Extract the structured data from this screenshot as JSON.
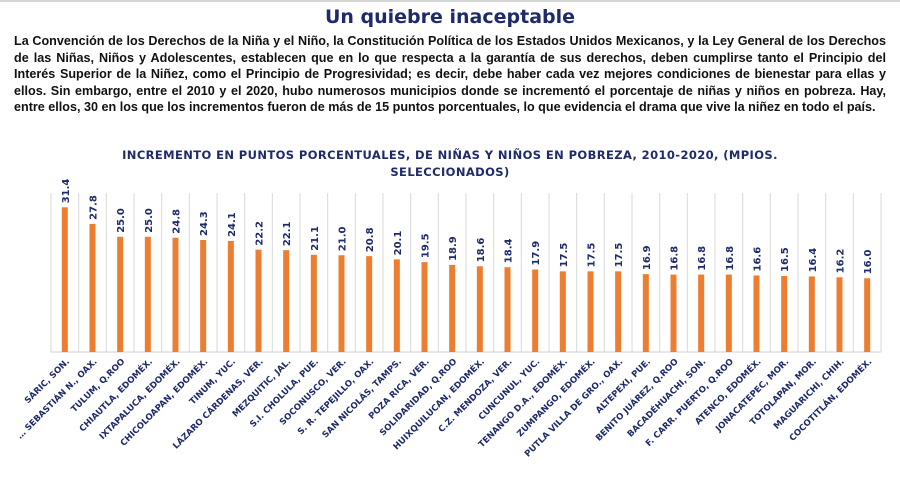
{
  "header": {
    "title": "Un quiebre inaceptable"
  },
  "body_text": "La Convención de los Derechos de la Niña y el Niño, la Constitución Política de los Estados Unidos Mexicanos, y la Ley General de los Derechos de las Niñas, Niños y Adolescentes, establecen que en lo que respecta a la garantía de sus derechos, deben cumplirse tanto el Principio del Interés Superior de la Niñez, como el Principio de Progresividad; es decir, debe haber cada vez mejores condiciones de bienestar para ellas y ellos. Sin embargo, entre el 2010 y el 2020, hubo numerosos municipios donde se incrementó el porcentaje de niñas y niños en pobreza. Hay, entre ellos, 30 en los que los incrementos fueron de más de 15 puntos porcentuales, lo que evidencia el drama que vive la niñez en todo el país.",
  "colors": {
    "bar": "#ed7d31",
    "text_navy": "#1f2a6b",
    "grid": "#d9d9d9"
  },
  "chart_data": {
    "type": "bar",
    "title": "INCREMENTO EN PUNTOS PORCENTUALES, DE NIÑAS Y NIÑOS EN POBREZA, 2010-2020, (MPIOS. SELECCIONADOS)",
    "xlabel": "",
    "ylabel": "",
    "ylim": [
      0,
      34.5
    ],
    "grid": "vertical category separators",
    "legend": "none",
    "data_labels": true,
    "categories": [
      "SÁRIC, SON.",
      "… SEBASTIÁN N., OAX.",
      "TULUM, Q.ROO",
      "CHIAUTLA, EDOMÉX.",
      "IXTAPALUCA, EDOMÉX.",
      "CHICOLOAPAN, EDOMÉX.",
      "TINUM, YUC.",
      "LÁZARO CÁRDENAS, VER.",
      "MEZQUITIC, JAL.",
      "S.I. CHOLULA, PUE.",
      "SOCONUSCO, VER.",
      "S. R. TEPEJILLO, OAX.",
      "SAN NICOLÁS, TAMPS.",
      "POZA RICA, VER.",
      "SOLIDARIDAD, Q.ROO",
      "HUIXQUILUCAN, EDOMÉX.",
      "C.Z. MENDOZA, VER.",
      "CUNCUNUL, YUC.",
      "TENANGO D.A., EDOMÉX.",
      "ZUMPANGO, EDOMÉX.",
      "PUTLA VILLA DE GRO., OAX.",
      "ALTEPEXI, PUE.",
      "BENITO JUÁREZ, Q.ROO",
      "BACADÉHUACHI, SON.",
      "F. CARR. PUERTO, Q.ROO",
      "ATENCO, EDOMÉX.",
      "JONACATEPEC, MOR.",
      "TOTOLAPAN, MOR.",
      "MAGUARICHI, CHIH.",
      "COCOTITLÁN, EDOMÉX."
    ],
    "values": [
      31.4,
      27.8,
      25.0,
      25.0,
      24.8,
      24.3,
      24.1,
      22.2,
      22.1,
      21.1,
      21.0,
      20.8,
      20.1,
      19.5,
      18.9,
      18.6,
      18.4,
      17.9,
      17.5,
      17.5,
      17.5,
      16.9,
      16.8,
      16.8,
      16.8,
      16.6,
      16.5,
      16.4,
      16.2,
      16.0
    ],
    "value_labels": [
      "31.4",
      "27.8",
      "25.0",
      "25.0",
      "24.8",
      "24.3",
      "24.1",
      "22.2",
      "22.1",
      "21.1",
      "21.0",
      "20.8",
      "20.1",
      "19.5",
      "18.9",
      "18.6",
      "18.4",
      "17.9",
      "17.5",
      "17.5",
      "17.5",
      "16.9",
      "16.8",
      "16.8",
      "16.8",
      "16.6",
      "16.5",
      "16.4",
      "16.2",
      "16.0"
    ]
  }
}
